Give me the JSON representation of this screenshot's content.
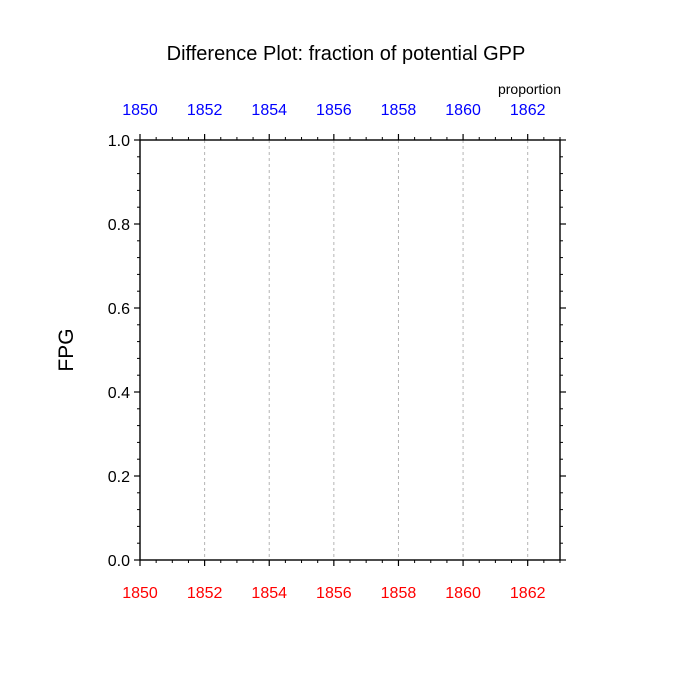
{
  "chart_data": {
    "type": "line",
    "title": "Difference Plot: fraction of potential GPP",
    "units_label": "proportion",
    "ylabel": "FPG",
    "xlabel": "",
    "xlim": [
      1850,
      1863
    ],
    "ylim": [
      0.0,
      1.0
    ],
    "x_ticks": [
      1850,
      1852,
      1854,
      1856,
      1858,
      1860,
      1862
    ],
    "x_tick_labels_bottom": [
      "1850",
      "1852",
      "1854",
      "1856",
      "1858",
      "1860",
      "1862"
    ],
    "x_tick_labels_top": [
      "1850",
      "1852",
      "1854",
      "1856",
      "1858",
      "1860",
      "1862"
    ],
    "y_ticks": [
      0.0,
      0.2,
      0.4,
      0.6,
      0.8,
      1.0
    ],
    "y_tick_labels": [
      "0.0",
      "0.2",
      "0.4",
      "0.6",
      "0.8",
      "1.0"
    ],
    "grid": "vertical dashed at major x ticks",
    "series": [],
    "colors": {
      "bottom_axis_labels": "#ff0000",
      "top_axis_labels": "#0000ff",
      "grid": "#b4b4b4",
      "axes": "#000000"
    }
  }
}
